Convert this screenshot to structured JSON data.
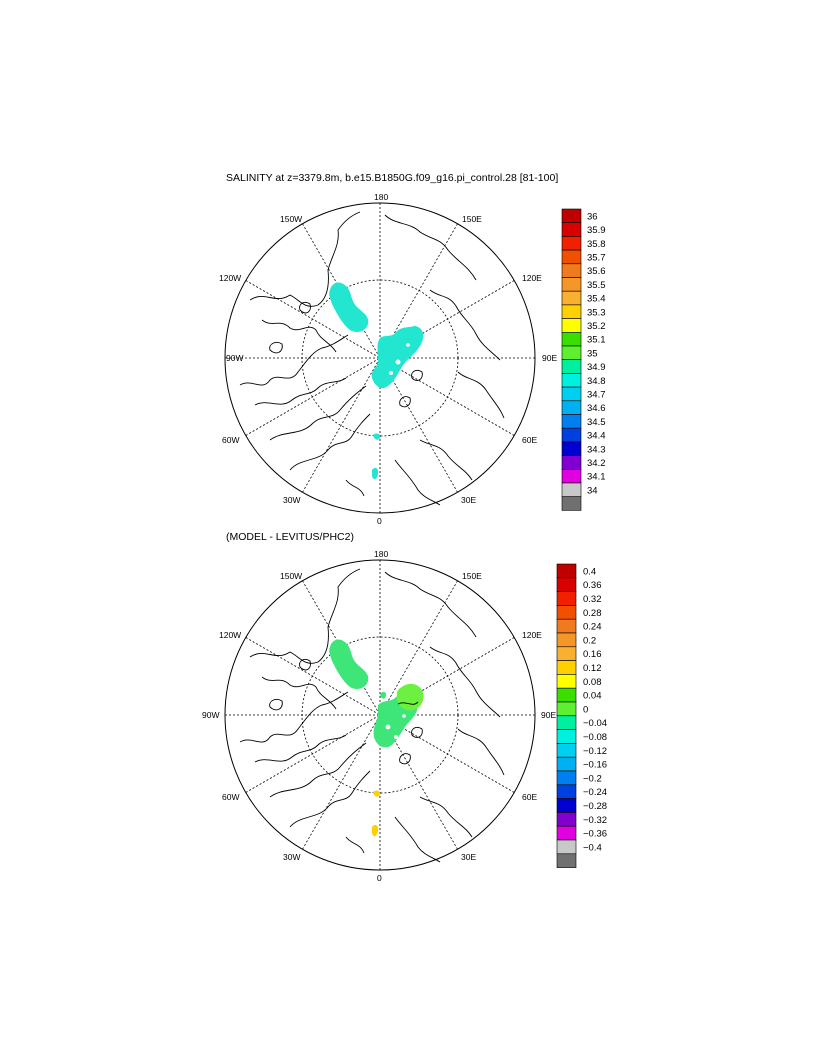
{
  "top": {
    "title": "SALINITY at z=3379.8m, b.e15.B1850G.f09_g16.pi_control.28 [81-100]",
    "lon_labels": {
      "n180": "180",
      "w150": "150W",
      "e150": "150E",
      "w120": "120W",
      "e120": "120E",
      "w90": "90W",
      "e90": "90E",
      "w60": "60W",
      "e60": "60E",
      "w30": "30W",
      "e30": "30E",
      "s0": "0"
    },
    "colorbar": {
      "labels": [
        "36",
        "35.9",
        "35.8",
        "35.7",
        "35.6",
        "35.5",
        "35.4",
        "35.3",
        "35.2",
        "35.1",
        "35",
        "34.9",
        "34.8",
        "34.7",
        "34.6",
        "34.5",
        "34.4",
        "34.3",
        "34.2",
        "34.1",
        "34"
      ],
      "colors": [
        "#c00000",
        "#d80000",
        "#f02000",
        "#f05000",
        "#f07a20",
        "#f59628",
        "#f7b030",
        "#ffd000",
        "#ffff00",
        "#3adf00",
        "#5ef030",
        "#00f0a0",
        "#00f0e0",
        "#00d0f0",
        "#00b0f0",
        "#0080f0",
        "#0040e0",
        "#0000d0",
        "#8000d0",
        "#e000e0",
        "#c8c8c8",
        "#707070"
      ]
    },
    "region_color": "#22e6cf"
  },
  "bottom": {
    "title": "(MODEL - LEVITUS/PHC2)",
    "lon_labels": {
      "n180": "180",
      "w150": "150W",
      "e150": "150E",
      "w120": "120W",
      "e120": "120E",
      "w90": "90W",
      "e90": "90E",
      "w60": "60W",
      "e60": "60E",
      "w30": "30W",
      "e30": "30E",
      "s0": "0"
    },
    "colorbar": {
      "labels": [
        "0.4",
        "0.36",
        "0.32",
        "0.28",
        "0.24",
        "0.2",
        "0.16",
        "0.12",
        "0.08",
        "0.04",
        "0",
        "−0.04",
        "−0.08",
        "−0.12",
        "−0.16",
        "−0.2",
        "−0.24",
        "−0.28",
        "−0.32",
        "−0.36",
        "−0.4"
      ],
      "colors": [
        "#c00000",
        "#d80000",
        "#f02000",
        "#f05000",
        "#f07a20",
        "#f59628",
        "#f7b030",
        "#ffd000",
        "#ffff00",
        "#3adf00",
        "#5ef030",
        "#00f0a0",
        "#00f0e0",
        "#00d0f0",
        "#00b0f0",
        "#0080f0",
        "#0040e0",
        "#0000d0",
        "#8000d0",
        "#e000e0",
        "#c8c8c8",
        "#707070"
      ]
    },
    "region_color_main": "#3ee67a",
    "region_color_high": "#6ef040",
    "region_color_pos": "#ffd000"
  }
}
